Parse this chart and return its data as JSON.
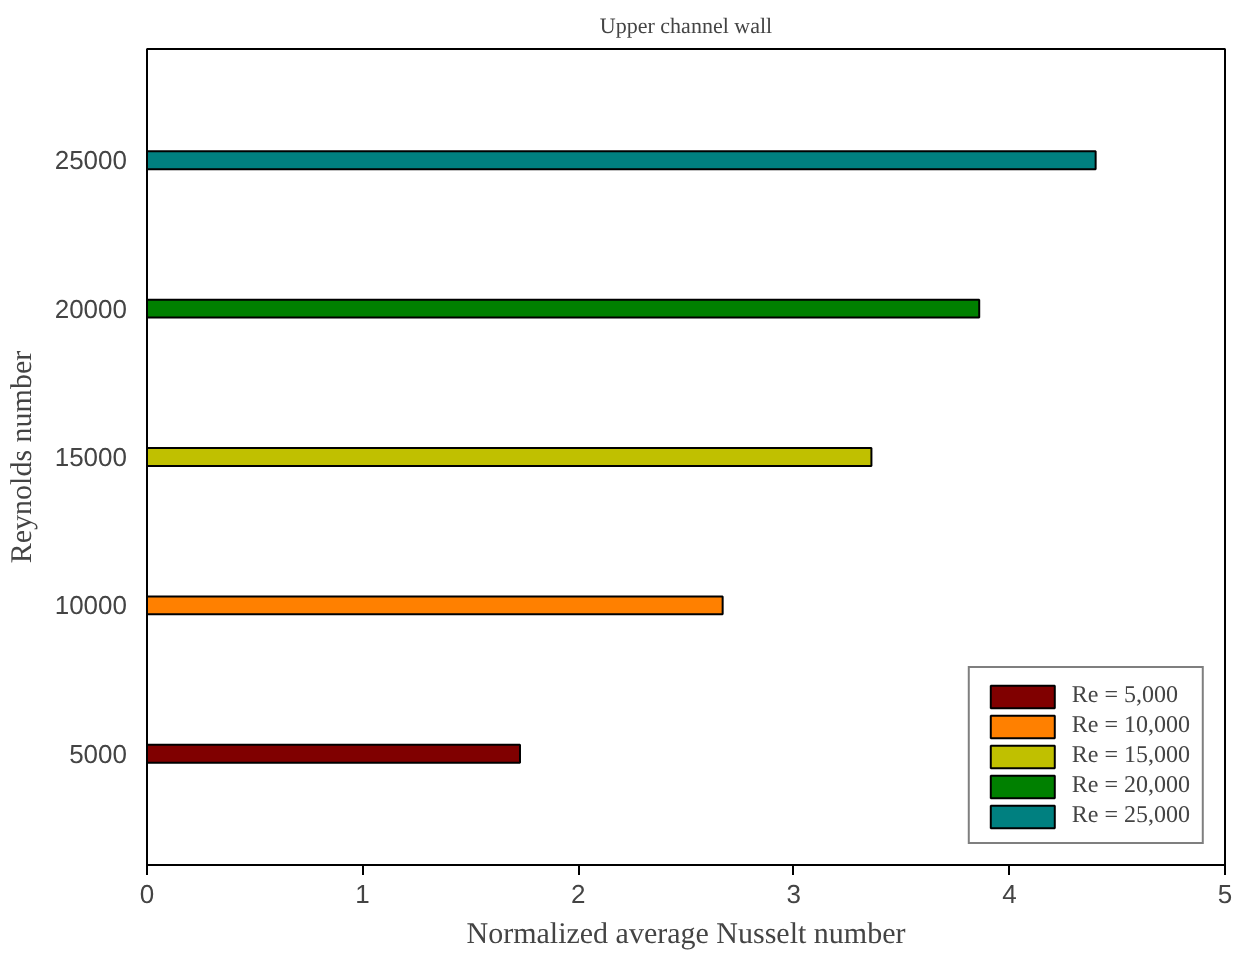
{
  "chart_data": {
    "type": "bar",
    "orientation": "horizontal",
    "title": "Upper channel wall",
    "xlabel": "Normalized average Nusselt number",
    "ylabel": "Reynolds number",
    "categories": [
      "25000",
      "20000",
      "15000",
      "10000",
      "5000"
    ],
    "series": [
      {
        "name": "Re = 5,000",
        "color": "#800000",
        "values": [
          null,
          null,
          null,
          null,
          1.73
        ]
      },
      {
        "name": "Re = 10,000",
        "color": "#ff8000",
        "values": [
          null,
          null,
          null,
          2.67,
          null
        ]
      },
      {
        "name": "Re = 15,000",
        "color": "#c0c000",
        "values": [
          null,
          null,
          3.36,
          null,
          null
        ]
      },
      {
        "name": "Re = 20,000",
        "color": "#008000",
        "values": [
          null,
          3.86,
          null,
          null,
          null
        ]
      },
      {
        "name": "Re = 25,000",
        "color": "#008080",
        "values": [
          4.4,
          null,
          null,
          null,
          null
        ]
      }
    ],
    "xlim": [
      0,
      5
    ],
    "xticks": [
      0,
      1,
      2,
      3,
      4,
      5
    ],
    "grid": false,
    "legend": "bottom right"
  }
}
